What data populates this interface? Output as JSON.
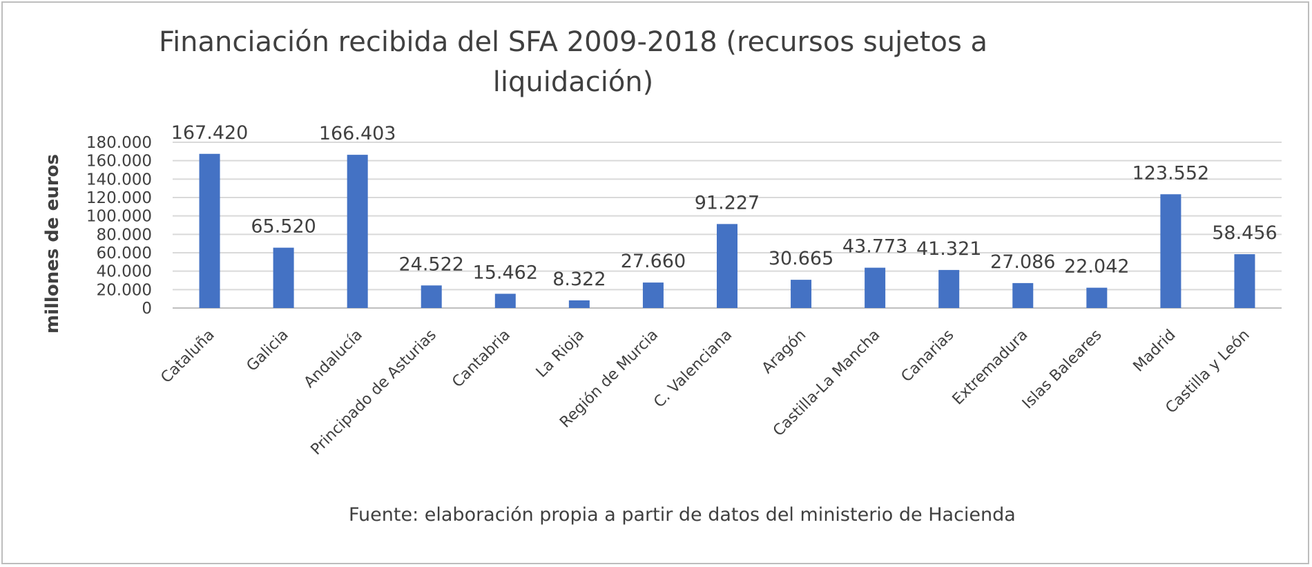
{
  "chart_data": {
    "type": "bar",
    "title": "Financiación recibida del SFA 2009-2018 (recursos sujetos a liquidación)",
    "ylabel": "millones de euros",
    "xlabel": "",
    "ylim": [
      0,
      180000
    ],
    "yticks": [
      0,
      20000,
      40000,
      60000,
      80000,
      100000,
      120000,
      140000,
      160000,
      180000
    ],
    "ytick_labels": [
      "0",
      "20.000",
      "40.000",
      "60.000",
      "80.000",
      "100.000",
      "120.000",
      "140.000",
      "160.000",
      "180.000"
    ],
    "grid": true,
    "bar_color": "#4472C4",
    "categories": [
      "Cataluña",
      "Galicia",
      "Andalucía",
      "Principado de Asturias",
      "Cantabria",
      "La Rioja",
      "Región de Murcia",
      "C. Valenciana",
      "Aragón",
      "Castilla-La Mancha",
      "Canarias",
      "Extremadura",
      "Islas Baleares",
      "Madrid",
      "Castilla y León"
    ],
    "values": [
      167420,
      65520,
      166403,
      24522,
      15462,
      8322,
      27660,
      91227,
      30665,
      43773,
      41321,
      27086,
      22042,
      123552,
      58456
    ],
    "value_labels": [
      "167.420",
      "65.520",
      "166.403",
      "24.522",
      "15.462",
      "8.322",
      "27.660",
      "91.227",
      "30.665",
      "43.773",
      "41.321",
      "27.086",
      "22.042",
      "123.552",
      "58.456"
    ],
    "source": "Fuente: elaboración propia a partir de datos del ministerio de Hacienda"
  }
}
